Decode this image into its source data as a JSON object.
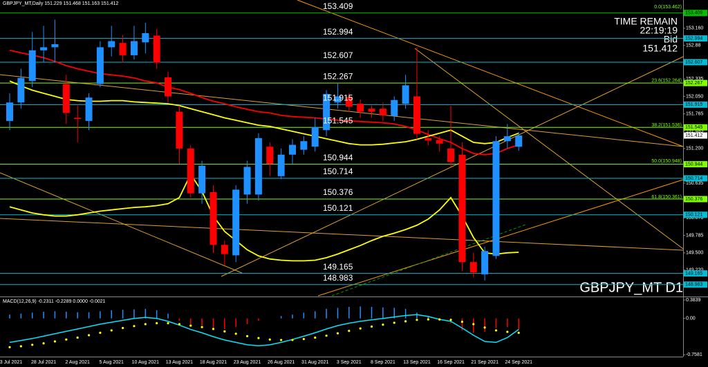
{
  "chart_data": [
    {
      "type": "candlestick",
      "title": "GBPJPY_MT,Daily 151.229 151.468 151.163 151.412",
      "categories": [
        "23 Jul 2021",
        null,
        null,
        "28 Jul 2021",
        null,
        null,
        "2 Aug 2021",
        null,
        null,
        "5 Aug 2021",
        null,
        null,
        "10 Aug 2021",
        null,
        null,
        "13 Aug 2021",
        null,
        null,
        "18 Aug 2021",
        null,
        null,
        "23 Aug 2021",
        null,
        null,
        "26 Aug 2021",
        null,
        null,
        "31 Aug 2021",
        null,
        null,
        "3 Sep 2021",
        null,
        null,
        "8 Sep 2021",
        null,
        null,
        "13 Sep 2021",
        null,
        null,
        "16 Sep 2021",
        null,
        null,
        "21 Sep 2021",
        null,
        null,
        "24 Sep 2021"
      ],
      "open": [
        151.65,
        151.95,
        152.3,
        152.8,
        152.85,
        152.25,
        151.7,
        151.65,
        152.25,
        152.85,
        152.92,
        152.72,
        152.93,
        153.04,
        152.36,
        151.8,
        151.2,
        150.47,
        150.49,
        149.63,
        149.46,
        150.45,
        150.45,
        151.23,
        150.75,
        151.1,
        151.18,
        151.23,
        151.5,
        151.95,
        152.04,
        151.93,
        151.85,
        151.85,
        151.73,
        151.93,
        152.05,
        151.37,
        151.34,
        151.2,
        151.1,
        149.35,
        149.15,
        149.45,
        151.32,
        151.229
      ],
      "high": [
        152.1,
        152.5,
        153.1,
        153.2,
        153.3,
        152.4,
        151.9,
        152.1,
        152.95,
        153.2,
        153.05,
        153.2,
        153.25,
        153.15,
        152.45,
        151.9,
        151.25,
        151.0,
        150.6,
        149.7,
        150.6,
        151.0,
        151.45,
        151.3,
        151.2,
        151.35,
        151.4,
        151.7,
        152.15,
        152.27,
        152.1,
        152.0,
        151.9,
        151.95,
        152.05,
        152.4,
        152.85,
        151.5,
        151.4,
        151.9,
        151.3,
        149.5,
        149.6,
        151.4,
        151.6,
        151.468
      ],
      "low": [
        151.5,
        151.85,
        152.2,
        152.6,
        152.6,
        151.6,
        151.3,
        151.5,
        152.2,
        152.7,
        152.6,
        152.65,
        152.75,
        152.5,
        151.95,
        150.95,
        150.4,
        150.3,
        149.5,
        149.3,
        149.35,
        150.3,
        150.35,
        150.75,
        150.7,
        150.95,
        151.1,
        151.15,
        151.4,
        151.85,
        151.8,
        151.7,
        151.7,
        151.65,
        151.65,
        151.85,
        151.35,
        151.25,
        151.15,
        150.9,
        149.2,
        149.1,
        149.05,
        149.4,
        151.2,
        151.163
      ],
      "close": [
        151.95,
        152.35,
        152.8,
        152.85,
        152.9,
        151.78,
        151.68,
        152.03,
        152.85,
        152.95,
        152.72,
        152.95,
        153.08,
        152.6,
        152.05,
        151.2,
        150.47,
        150.92,
        149.63,
        149.48,
        150.53,
        150.9,
        151.37,
        150.95,
        151.1,
        151.26,
        151.32,
        151.55,
        152.09,
        152.05,
        151.88,
        151.8,
        151.8,
        151.74,
        151.99,
        152.23,
        151.44,
        151.33,
        151.28,
        150.98,
        149.35,
        149.18,
        149.53,
        151.32,
        151.4,
        151.412
      ],
      "up_color": "#1e90ff",
      "down_color": "#ff0000",
      "lines": [
        {
          "color": "#ff0000",
          "values": [
            152.8,
            152.76,
            152.72,
            152.68,
            152.62,
            152.55,
            152.5,
            152.46,
            152.42,
            152.4,
            152.38,
            152.35,
            152.3,
            152.27,
            152.2,
            152.16,
            152.1,
            152.03,
            151.97,
            151.93,
            151.88,
            151.84,
            151.8,
            151.78,
            151.74,
            151.72,
            151.71,
            151.7,
            151.68,
            151.66,
            151.65,
            151.64,
            151.63,
            151.62,
            151.6,
            151.56,
            151.5,
            151.43,
            151.36,
            151.3,
            151.2,
            151.12,
            151.1,
            151.12,
            151.2,
            151.26
          ]
        },
        {
          "color": "#ffff00",
          "values": [
            152.3,
            152.22,
            152.15,
            152.1,
            152.05,
            152.0,
            151.98,
            151.97,
            151.97,
            151.98,
            151.98,
            151.96,
            151.95,
            151.94,
            151.93,
            151.9,
            151.85,
            151.8,
            151.75,
            151.7,
            151.66,
            151.62,
            151.58,
            151.56,
            151.52,
            151.48,
            151.44,
            151.4,
            151.36,
            151.32,
            151.28,
            151.26,
            151.26,
            151.27,
            151.29,
            151.31,
            151.35,
            151.4,
            151.45,
            151.5,
            151.4,
            151.3,
            151.28,
            151.3,
            151.38,
            151.45
          ]
        },
        {
          "color": "#ffff00",
          "values": [
            150.25,
            150.2,
            150.15,
            150.12,
            150.1,
            150.1,
            150.12,
            150.15,
            150.18,
            150.2,
            150.22,
            150.24,
            150.25,
            150.27,
            150.3,
            150.4,
            150.78,
            150.5,
            150.1,
            149.85,
            149.7,
            149.55,
            149.45,
            149.4,
            149.38,
            149.37,
            149.37,
            149.38,
            149.42,
            149.48,
            149.55,
            149.62,
            149.7,
            149.77,
            149.82,
            149.88,
            149.95,
            150.05,
            150.2,
            150.4,
            150.1,
            149.75,
            149.5,
            149.48,
            149.5,
            149.51
          ]
        }
      ],
      "levels": [
        {
          "value": 153.409,
          "color": "#00c000"
        },
        {
          "value": 152.994,
          "color": "#00bcd4"
        },
        {
          "value": 152.607,
          "color": "#00bcd4"
        },
        {
          "value": 152.267,
          "color": "#7fff00"
        },
        {
          "value": 151.915,
          "color": "#00bcd4"
        },
        {
          "value": 151.545,
          "color": "#7fff00"
        },
        {
          "value": 150.944,
          "color": "#7fff00"
        },
        {
          "value": 150.714,
          "color": "#00bcd4"
        },
        {
          "value": 150.376,
          "color": "#7fff00"
        },
        {
          "value": 150.121,
          "color": "#00bcd4"
        },
        {
          "value": 149.165,
          "color": "#00bcd4"
        },
        {
          "value": 148.983,
          "color": "#00bcd4"
        }
      ],
      "fib": [
        {
          "value": 153.462,
          "label": "0.0(153.462)"
        },
        {
          "value": 152.264,
          "label": "23.6(152.264)"
        },
        {
          "value": 151.536,
          "label": "38.2(151.536)"
        },
        {
          "value": 150.948,
          "label": "50.0(150.948)"
        },
        {
          "value": 150.361,
          "label": "61.8(150.361)"
        }
      ],
      "ylim": [
        148.8,
        153.62
      ],
      "yticks": [
        {
          "value": 153.16,
          "label": "153.160"
        },
        152.88,
        {
          "value": 152.61,
          "label": "152.610"
        },
        152.335,
        {
          "value": 152.05,
          "label": "152.050"
        },
        151.765,
        151.485,
        {
          "value": 151.2,
          "label": "151.200"
        },
        150.915,
        150.635,
        {
          "value": 150.35,
          "label": "150.350"
        },
        {
          "value": 150.07,
          "label": "150.070"
        },
        149.785,
        {
          "value": 149.5,
          "label": "149.500"
        },
        {
          "value": 149.22,
          "label": "149.220"
        }
      ],
      "time_remain_label": "TIME REMAIN",
      "time_remain": "22:19:19",
      "bid_label": "Bid",
      "bid": 151.412,
      "watermark": "GBPJPY_MT D1"
    },
    {
      "type": "macd",
      "title": "MACD(12,26,9) -0.2311 -0.2289 0.0000 -0.0021",
      "histogram": [
        0.08,
        0.1,
        0.12,
        0.14,
        0.15,
        0.14,
        0.13,
        0.13,
        0.15,
        0.17,
        0.18,
        0.19,
        0.2,
        0.17,
        0.1,
        -0.05,
        -0.12,
        -0.15,
        -0.2,
        -0.22,
        -0.18,
        -0.12,
        -0.05,
        0.0,
        0.05,
        0.08,
        0.12,
        0.15,
        0.2,
        0.22,
        0.24,
        0.25,
        0.24,
        0.23,
        0.22,
        0.2,
        0.12,
        0.04,
        -0.05,
        -0.1,
        -0.25,
        -0.3,
        -0.28,
        -0.2,
        -0.18,
        -0.2311
      ],
      "up_color": "#1e90ff",
      "down_color": "#ff0000",
      "line": {
        "color": "#00e5ff",
        "values": [
          -0.5,
          -0.46,
          -0.42,
          -0.37,
          -0.32,
          -0.27,
          -0.22,
          -0.17,
          -0.12,
          -0.08,
          -0.04,
          0.0,
          0.02,
          0.0,
          -0.06,
          -0.14,
          -0.23,
          -0.3,
          -0.38,
          -0.45,
          -0.5,
          -0.55,
          -0.57,
          -0.55,
          -0.5,
          -0.44,
          -0.37,
          -0.3,
          -0.22,
          -0.15,
          -0.1,
          -0.06,
          -0.03,
          0.0,
          0.03,
          0.06,
          0.08,
          0.04,
          -0.02,
          -0.06,
          -0.2,
          -0.35,
          -0.48,
          -0.5,
          -0.4,
          -0.2289
        ]
      },
      "signal": {
        "color": "#ffff00",
        "values": [
          -0.6,
          -0.58,
          -0.55,
          -0.52,
          -0.48,
          -0.44,
          -0.4,
          -0.35,
          -0.3,
          -0.25,
          -0.2,
          -0.16,
          -0.12,
          -0.1,
          -0.1,
          -0.12,
          -0.15,
          -0.18,
          -0.22,
          -0.27,
          -0.32,
          -0.37,
          -0.41,
          -0.44,
          -0.45,
          -0.45,
          -0.43,
          -0.4,
          -0.36,
          -0.31,
          -0.26,
          -0.21,
          -0.17,
          -0.13,
          -0.09,
          -0.06,
          -0.03,
          -0.02,
          -0.02,
          -0.03,
          -0.07,
          -0.12,
          -0.19,
          -0.25,
          -0.28,
          -0.3
        ]
      },
      "ylim": [
        -0.797,
        0.4282
      ],
      "yticks": [
        0.3839,
        {
          "value": 0,
          "label": "0.00"
        },
        -0.7581
      ]
    }
  ]
}
